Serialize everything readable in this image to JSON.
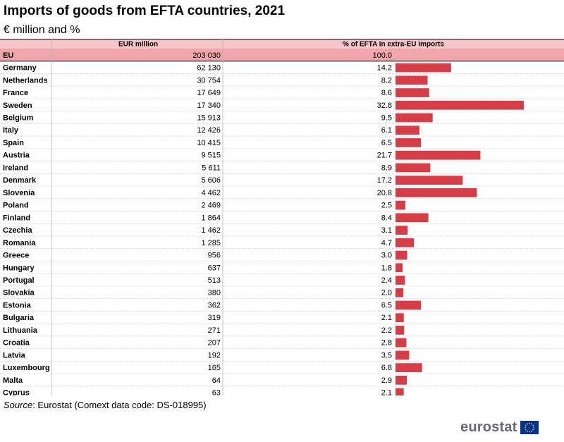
{
  "page": {
    "title": "Imports of goods from EFTA countries, 2021",
    "subtitle": "€ million and %"
  },
  "source": {
    "label": "Source",
    "text": ": Eurostat (Comext data code: DS-018995)"
  },
  "logo": {
    "text": "eurostat",
    "icon": "eu-flag-icon"
  },
  "colors": {
    "bar": "#d63d46",
    "header_bg": "#f5c6c9",
    "eu_row_bg": "#f0a6ab"
  },
  "chart_data": {
    "type": "table",
    "columns": [
      "EUR million",
      "% of EFTA in extra-EU imports"
    ],
    "aggregate": {
      "name": "EU",
      "eur_million": "203 030",
      "pct": 100.0,
      "pct_label": "100.0"
    },
    "rows": [
      {
        "name": "Germany",
        "eur_million": "62 130",
        "pct": 14.2,
        "pct_label": "14.2"
      },
      {
        "name": "Netherlands",
        "eur_million": "30 754",
        "pct": 8.2,
        "pct_label": "8.2"
      },
      {
        "name": "France",
        "eur_million": "17 649",
        "pct": 8.6,
        "pct_label": "8.6"
      },
      {
        "name": "Sweden",
        "eur_million": "17 340",
        "pct": 32.8,
        "pct_label": "32.8"
      },
      {
        "name": "Belgium",
        "eur_million": "15 913",
        "pct": 9.5,
        "pct_label": "9.5"
      },
      {
        "name": "Italy",
        "eur_million": "12 426",
        "pct": 6.1,
        "pct_label": "6.1"
      },
      {
        "name": "Spain",
        "eur_million": "10 415",
        "pct": 6.5,
        "pct_label": "6.5"
      },
      {
        "name": "Austria",
        "eur_million": "9 515",
        "pct": 21.7,
        "pct_label": "21.7"
      },
      {
        "name": "Ireland",
        "eur_million": "5 611",
        "pct": 8.9,
        "pct_label": "8.9"
      },
      {
        "name": "Denmark",
        "eur_million": "5 606",
        "pct": 17.2,
        "pct_label": "17.2"
      },
      {
        "name": "Slovenia",
        "eur_million": "4 462",
        "pct": 20.8,
        "pct_label": "20.8"
      },
      {
        "name": "Poland",
        "eur_million": "2 469",
        "pct": 2.5,
        "pct_label": "2.5"
      },
      {
        "name": "Finland",
        "eur_million": "1 864",
        "pct": 8.4,
        "pct_label": "8.4"
      },
      {
        "name": "Czechia",
        "eur_million": "1 462",
        "pct": 3.1,
        "pct_label": "3.1"
      },
      {
        "name": "Romania",
        "eur_million": "1 285",
        "pct": 4.7,
        "pct_label": "4.7"
      },
      {
        "name": "Greece",
        "eur_million": "956",
        "pct": 3.0,
        "pct_label": "3.0"
      },
      {
        "name": "Hungary",
        "eur_million": "637",
        "pct": 1.8,
        "pct_label": "1.8"
      },
      {
        "name": "Portugal",
        "eur_million": "513",
        "pct": 2.4,
        "pct_label": "2.4"
      },
      {
        "name": "Slovakia",
        "eur_million": "380",
        "pct": 2.0,
        "pct_label": "2.0"
      },
      {
        "name": "Estonia",
        "eur_million": "362",
        "pct": 6.5,
        "pct_label": "6.5"
      },
      {
        "name": "Bulgaria",
        "eur_million": "319",
        "pct": 2.1,
        "pct_label": "2.1"
      },
      {
        "name": "Lithuania",
        "eur_million": "271",
        "pct": 2.2,
        "pct_label": "2.2"
      },
      {
        "name": "Croatia",
        "eur_million": "207",
        "pct": 2.8,
        "pct_label": "2.8"
      },
      {
        "name": "Latvia",
        "eur_million": "192",
        "pct": 3.5,
        "pct_label": "3.5"
      },
      {
        "name": "Luxembourg",
        "eur_million": "165",
        "pct": 6.8,
        "pct_label": "6.8"
      },
      {
        "name": "Malta",
        "eur_million": "64",
        "pct": 2.9,
        "pct_label": "2.9"
      },
      {
        "name": "Cyprus",
        "eur_million": "63",
        "pct": 2.1,
        "pct_label": "2.1"
      }
    ]
  }
}
